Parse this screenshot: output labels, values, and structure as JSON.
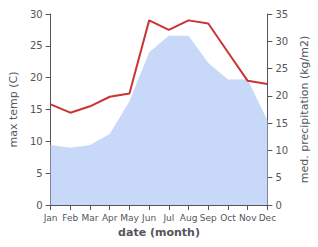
{
  "chart_data": {
    "type": "line",
    "categories": [
      "Jan",
      "Feb",
      "Mar",
      "Apr",
      "May",
      "Jun",
      "Jul",
      "Aug",
      "Sep",
      "Oct",
      "Nov",
      "Dec"
    ],
    "series": [
      {
        "type": "area",
        "axis": "y2",
        "color": "#c8d8f8",
        "values": [
          11.0,
          10.5,
          11.0,
          13.0,
          19.0,
          28.0,
          31.0,
          31.0,
          26.0,
          23.0,
          23.0,
          15.5
        ]
      },
      {
        "type": "line",
        "color": "#cc3333",
        "values": [
          15.8,
          14.5,
          15.5,
          17.0,
          17.5,
          29.0,
          27.5,
          29.0,
          28.5,
          24.0,
          19.5,
          19.0
        ]
      }
    ],
    "xlabel": "date (month)",
    "ylabel": "max temp (C)",
    "y2label": "med. precipitation (kg/m2)",
    "ylim": [
      0,
      30
    ],
    "yticks": [
      0,
      5,
      10,
      15,
      20,
      25,
      30
    ],
    "y2lim": [
      0,
      35
    ],
    "y2ticks": [
      0,
      5,
      10,
      15,
      20,
      25,
      30,
      35
    ],
    "grid": false
  }
}
